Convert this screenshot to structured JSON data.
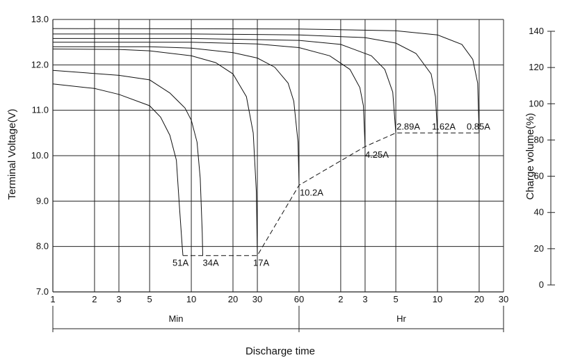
{
  "chart_data": {
    "type": "line",
    "xlabel": "Discharge time",
    "ylabel": "Terminal Voltage(V)",
    "y2label": "Charge volume(%)",
    "ylim": [
      7.0,
      13.0
    ],
    "y2lim": [
      0,
      140
    ],
    "y_ticks": [
      "7.0",
      "8.0",
      "9.0",
      "10.0",
      "11.0",
      "12.0",
      "13.0"
    ],
    "y2_ticks": [
      "0",
      "20",
      "40",
      "60",
      "80",
      "100",
      "120",
      "140"
    ],
    "x_scale": "log",
    "x_ticks": [
      {
        "label": "1",
        "minutes": 1
      },
      {
        "label": "2",
        "minutes": 2
      },
      {
        "label": "3",
        "minutes": 3
      },
      {
        "label": "5",
        "minutes": 5
      },
      {
        "label": "10",
        "minutes": 10
      },
      {
        "label": "20",
        "minutes": 20
      },
      {
        "label": "30",
        "minutes": 30
      },
      {
        "label": "60",
        "minutes": 60
      },
      {
        "label": "2",
        "minutes": 120
      },
      {
        "label": "3",
        "minutes": 180
      },
      {
        "label": "5",
        "minutes": 300
      },
      {
        "label": "10",
        "minutes": 600
      },
      {
        "label": "20",
        "minutes": 1200
      },
      {
        "label": "30",
        "minutes": 1800
      }
    ],
    "time_ranges": [
      {
        "label": "Min",
        "from_minutes": 1,
        "to_minutes": 60
      },
      {
        "label": "Hr",
        "from_minutes": 60,
        "to_minutes": 1800
      }
    ],
    "grid": true,
    "series": [
      {
        "name": "51A",
        "x": [
          1,
          2,
          3,
          5,
          6,
          7,
          7.8,
          8.2,
          8.6,
          8.7
        ],
        "y": [
          11.58,
          11.48,
          11.35,
          11.1,
          10.85,
          10.45,
          9.9,
          8.9,
          8.0,
          7.8
        ]
      },
      {
        "name": "34A",
        "x": [
          1,
          3,
          5,
          7,
          9,
          10,
          11,
          11.6,
          12,
          12.1
        ],
        "y": [
          11.88,
          11.77,
          11.67,
          11.38,
          11.05,
          10.78,
          10.3,
          9.5,
          8.3,
          7.8
        ]
      },
      {
        "name": "17A",
        "x": [
          1,
          3,
          5,
          10,
          15,
          20,
          25,
          28,
          29.5,
          30
        ],
        "y": [
          12.35,
          12.34,
          12.31,
          12.2,
          12.05,
          11.8,
          11.3,
          10.5,
          9.2,
          7.8
        ]
      },
      {
        "name": "10.2A",
        "x": [
          1,
          5,
          10,
          20,
          30,
          40,
          50,
          55,
          59,
          60
        ],
        "y": [
          12.4,
          12.4,
          12.37,
          12.27,
          12.15,
          11.95,
          11.6,
          11.2,
          10.3,
          9.35
        ]
      },
      {
        "name": "4.25A",
        "x": [
          1,
          10,
          30,
          60,
          100,
          140,
          165,
          175,
          180
        ],
        "y": [
          12.5,
          12.5,
          12.46,
          12.38,
          12.2,
          11.9,
          11.5,
          11.1,
          10.2
        ]
      },
      {
        "name": "2.89A",
        "x": [
          1,
          10,
          60,
          120,
          200,
          250,
          285,
          300
        ],
        "y": [
          12.58,
          12.58,
          12.54,
          12.45,
          12.2,
          11.9,
          11.4,
          10.5
        ]
      },
      {
        "name": "1.62A",
        "x": [
          1,
          10,
          60,
          180,
          300,
          420,
          540,
          580,
          600
        ],
        "y": [
          12.68,
          12.68,
          12.66,
          12.6,
          12.48,
          12.25,
          11.8,
          11.3,
          10.5
        ]
      },
      {
        "name": "0.85A",
        "x": [
          1,
          60,
          300,
          600,
          900,
          1080,
          1170,
          1200
        ],
        "y": [
          12.8,
          12.79,
          12.75,
          12.66,
          12.45,
          12.12,
          11.6,
          10.5
        ]
      }
    ],
    "end_line": {
      "style": "dashed",
      "x": [
        8.7,
        30,
        60,
        180,
        300,
        600,
        1200
      ],
      "y": [
        7.8,
        7.8,
        9.35,
        10.2,
        10.5,
        10.5,
        10.5
      ]
    }
  }
}
